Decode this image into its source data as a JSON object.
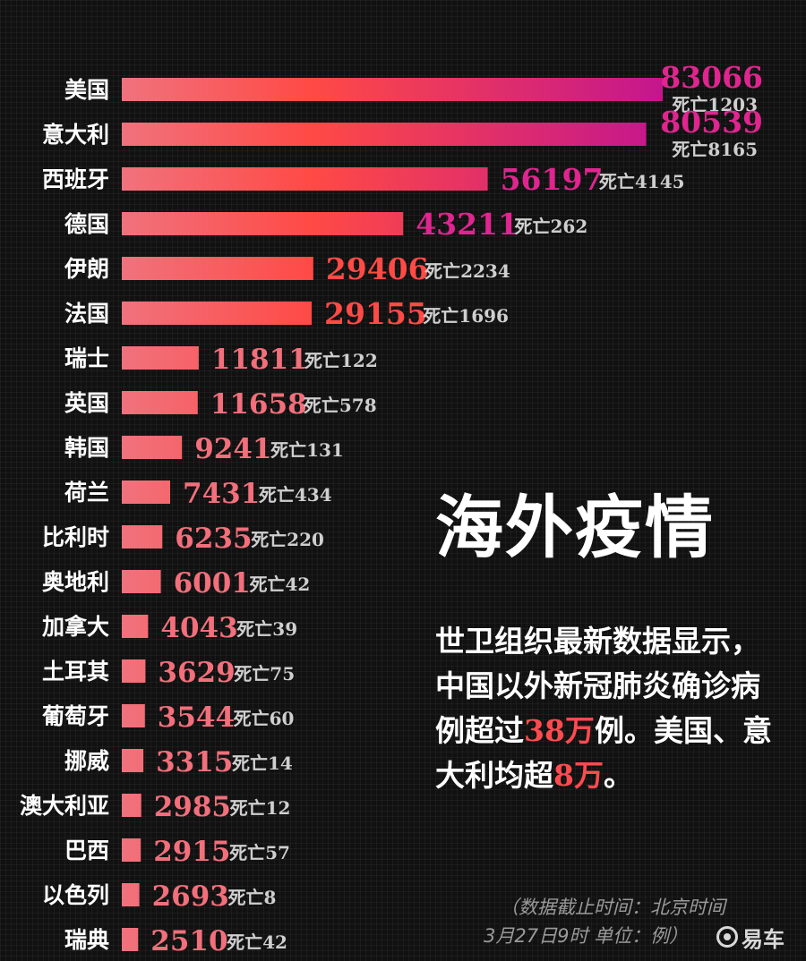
{
  "chart_data": {
    "type": "bar",
    "orientation": "horizontal",
    "categories": [
      "美国",
      "意大利",
      "西班牙",
      "德国",
      "伊朗",
      "法国",
      "瑞士",
      "英国",
      "韩国",
      "荷兰",
      "比利时",
      "奥地利",
      "加拿大",
      "土耳其",
      "葡萄牙",
      "挪威",
      "澳大利亚",
      "巴西",
      "以色列",
      "瑞典"
    ],
    "values": [
      83066,
      80539,
      56197,
      43211,
      29406,
      29155,
      11811,
      11658,
      9241,
      7431,
      6235,
      6001,
      4043,
      3629,
      3544,
      3315,
      2985,
      2915,
      2693,
      2510
    ],
    "deaths": [
      1203,
      8165,
      4145,
      262,
      2234,
      1696,
      122,
      578,
      131,
      434,
      220,
      42,
      39,
      75,
      60,
      14,
      12,
      57,
      8,
      42
    ],
    "death_prefix": "死亡",
    "grid": false,
    "legend": "none",
    "colors": {
      "bar_start": "#f0727d",
      "bar_mid": "#ff4a45",
      "bar_end": "#c4168d",
      "value_high": "#e0258f",
      "value_mid": "#ff4a45",
      "value_low": "#f26f7b",
      "death_text": "#cfcfcf",
      "category_text": "#ffffff"
    }
  },
  "headline": "海外疫情",
  "summary": {
    "part1": "世卫组织最新数据显示，中国以外新冠肺炎确诊病例超过",
    "num1": "38万",
    "part2": "例。美国、意大利均超",
    "num2": "8万",
    "part3": "。"
  },
  "footnote": {
    "line1": "（数据截止时间：北京时间",
    "line2": "3月27日9时 单位：例）"
  },
  "logo": {
    "icon": "yiche-logo-icon",
    "text": "易车"
  }
}
